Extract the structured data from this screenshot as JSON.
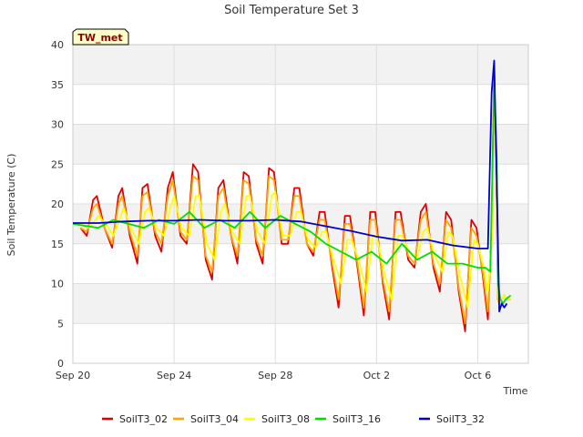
{
  "chart_data": {
    "type": "line",
    "title": "Soil Temperature Set 3",
    "xlabel": "Time",
    "ylabel": "Soil Temperature (C)",
    "xlim": [
      0,
      18
    ],
    "ylim": [
      0,
      40
    ],
    "yticks": [
      0,
      5,
      10,
      15,
      20,
      25,
      30,
      35,
      40
    ],
    "xticks": [
      {
        "value": 0,
        "label": "Sep 20"
      },
      {
        "value": 4,
        "label": "Sep 24"
      },
      {
        "value": 8,
        "label": "Sep 28"
      },
      {
        "value": 12,
        "label": "Oct 2"
      },
      {
        "value": 16,
        "label": "Oct 6"
      }
    ],
    "station_badge": "TW_met",
    "grid": true,
    "legend_position": "bottom",
    "series": [
      {
        "name": "SoilT3_02",
        "color": "#e00000",
        "x": [
          0.3,
          0.55,
          0.8,
          0.95,
          1.25,
          1.55,
          1.8,
          1.95,
          2.25,
          2.55,
          2.75,
          2.95,
          3.25,
          3.5,
          3.75,
          3.95,
          4.25,
          4.5,
          4.75,
          4.95,
          5.25,
          5.5,
          5.75,
          5.95,
          6.25,
          6.5,
          6.75,
          6.95,
          7.25,
          7.5,
          7.75,
          7.95,
          8.25,
          8.5,
          8.75,
          8.95,
          9.25,
          9.5,
          9.75,
          9.95,
          10.25,
          10.5,
          10.75,
          10.95,
          11.25,
          11.5,
          11.75,
          11.95,
          12.25,
          12.5,
          12.75,
          12.95,
          13.25,
          13.5,
          13.75,
          13.95,
          14.25,
          14.5,
          14.75,
          14.95,
          15.25,
          15.5,
          15.75,
          15.95,
          16.2,
          16.4,
          16.55,
          16.65,
          16.75,
          16.8,
          16.85,
          16.95,
          17.05,
          17.15,
          17.3
        ],
        "y": [
          17,
          16,
          20.5,
          21,
          17,
          14.5,
          21,
          22,
          16,
          12.5,
          22,
          22.5,
          16,
          14,
          22,
          24,
          16,
          15,
          25,
          24,
          13,
          10.5,
          22,
          23,
          16,
          12.5,
          24,
          23.5,
          15,
          12.5,
          24.5,
          24,
          15,
          15,
          22,
          22,
          15,
          13.5,
          19,
          19,
          12,
          7,
          18.5,
          18.5,
          12,
          6,
          19,
          19,
          10,
          5.5,
          19,
          19,
          13,
          12,
          19,
          20,
          12,
          9,
          19,
          18,
          9,
          4,
          18,
          17,
          11,
          5.5,
          17,
          37,
          20,
          8,
          7.5,
          8,
          8.5,
          8,
          8
        ]
      },
      {
        "name": "SoilT3_04",
        "color": "#ffa500",
        "x": [
          0.3,
          0.55,
          0.8,
          0.95,
          1.25,
          1.55,
          1.8,
          1.95,
          2.25,
          2.55,
          2.75,
          2.95,
          3.25,
          3.5,
          3.75,
          3.95,
          4.25,
          4.5,
          4.75,
          4.95,
          5.25,
          5.5,
          5.75,
          5.95,
          6.25,
          6.5,
          6.75,
          6.95,
          7.25,
          7.5,
          7.75,
          7.95,
          8.25,
          8.5,
          8.75,
          8.95,
          9.25,
          9.5,
          9.75,
          9.95,
          10.25,
          10.5,
          10.75,
          10.95,
          11.25,
          11.5,
          11.75,
          11.95,
          12.25,
          12.5,
          12.75,
          12.95,
          13.25,
          13.5,
          13.75,
          13.95,
          14.25,
          14.5,
          14.75,
          14.95,
          15.25,
          15.5,
          15.75,
          15.95,
          16.2,
          16.4,
          16.55,
          16.65,
          16.75,
          16.8,
          16.85,
          16.95,
          17.05,
          17.15,
          17.3
        ],
        "y": [
          17,
          16.5,
          19.5,
          20,
          17,
          15,
          20,
          21,
          16.5,
          13.5,
          21,
          21.5,
          16.5,
          15,
          21,
          23,
          16.5,
          15.5,
          23.5,
          23,
          13.5,
          11.5,
          21,
          22,
          16,
          13.5,
          23,
          22.5,
          15.5,
          13.5,
          23.5,
          23,
          15.5,
          15.5,
          21,
          21,
          15,
          14,
          18,
          18,
          12.5,
          8,
          17.5,
          17.5,
          12.5,
          7,
          18,
          18,
          10.5,
          6.5,
          18,
          18,
          13.5,
          12.5,
          18,
          19,
          12.5,
          10,
          18,
          17,
          9.5,
          5,
          17,
          16,
          11.5,
          6.5,
          16,
          36.5,
          21,
          8,
          7.5,
          8,
          8.5,
          8,
          8
        ]
      },
      {
        "name": "SoilT3_08",
        "color": "#ffff00",
        "x": [
          0.3,
          0.6,
          0.9,
          1.0,
          1.3,
          1.6,
          1.9,
          2.0,
          2.3,
          2.6,
          2.85,
          3.0,
          3.3,
          3.6,
          3.85,
          4.0,
          4.3,
          4.6,
          4.85,
          5.0,
          5.3,
          5.6,
          5.85,
          6.0,
          6.3,
          6.6,
          6.85,
          7.0,
          7.3,
          7.6,
          7.85,
          8.0,
          8.3,
          8.6,
          8.85,
          9.0,
          9.3,
          9.6,
          9.85,
          10.0,
          10.3,
          10.6,
          10.85,
          11.0,
          11.3,
          11.6,
          11.85,
          12.0,
          12.3,
          12.6,
          12.85,
          13.0,
          13.3,
          13.6,
          13.85,
          14.0,
          14.3,
          14.6,
          14.85,
          15.0,
          15.3,
          15.6,
          15.85,
          16.0,
          16.2,
          16.4,
          16.55,
          16.65,
          16.75,
          16.8,
          16.85,
          16.95,
          17.05,
          17.15,
          17.3
        ],
        "y": [
          17.5,
          17,
          18,
          18.5,
          17.5,
          16,
          18.5,
          19.5,
          17,
          15,
          19,
          19.5,
          17,
          16,
          19.5,
          21,
          17,
          16,
          21,
          21,
          15,
          13,
          19,
          20,
          16.5,
          15,
          21,
          21,
          16.5,
          15,
          21,
          21.5,
          16,
          16,
          19,
          19,
          15.5,
          14.5,
          16.5,
          16.5,
          13,
          10,
          15.5,
          15.5,
          13,
          9,
          16,
          16,
          11.5,
          8,
          16,
          16,
          14,
          13,
          16.5,
          17,
          13.5,
          11.5,
          16.5,
          16,
          11,
          7,
          15.5,
          15,
          12.5,
          9,
          15,
          35,
          22,
          8.5,
          7.5,
          8,
          8.5,
          8,
          8
        ]
      },
      {
        "name": "SoilT3_16",
        "color": "#00dd00",
        "x": [
          0,
          1.0,
          1.6,
          2.2,
          2.8,
          3.4,
          4.0,
          4.6,
          5.2,
          5.8,
          6.4,
          7.0,
          7.6,
          8.2,
          8.8,
          9.4,
          10.0,
          10.6,
          11.2,
          11.8,
          12.4,
          13.0,
          13.6,
          14.2,
          14.8,
          15.4,
          16.0,
          16.3,
          16.5,
          16.65,
          16.75,
          16.8,
          16.9,
          17.0,
          17.1,
          17.3
        ],
        "y": [
          17.5,
          17,
          18,
          17.5,
          17,
          18,
          17.5,
          19,
          17,
          18,
          17,
          19,
          17,
          18.5,
          17.5,
          16.5,
          15,
          14,
          13,
          14,
          12.5,
          15,
          13,
          14,
          12.5,
          12.5,
          12,
          12,
          11.5,
          35,
          26,
          10,
          8,
          7.5,
          8,
          8.5
        ]
      },
      {
        "name": "SoilT3_32",
        "color": "#0000cc",
        "x": [
          0,
          1,
          2,
          3,
          4,
          5,
          6,
          7,
          8,
          9,
          10,
          11,
          12,
          13,
          14,
          15,
          16,
          16.4,
          16.55,
          16.65,
          16.75,
          16.85,
          16.95,
          17.05,
          17.15
        ],
        "y": [
          17.6,
          17.6,
          17.8,
          17.9,
          17.9,
          18,
          17.9,
          17.9,
          18,
          17.8,
          17.2,
          16.6,
          15.9,
          15.4,
          15.5,
          14.8,
          14.4,
          14.4,
          34,
          38,
          23,
          6.5,
          7.5,
          7,
          7.5
        ]
      }
    ]
  }
}
